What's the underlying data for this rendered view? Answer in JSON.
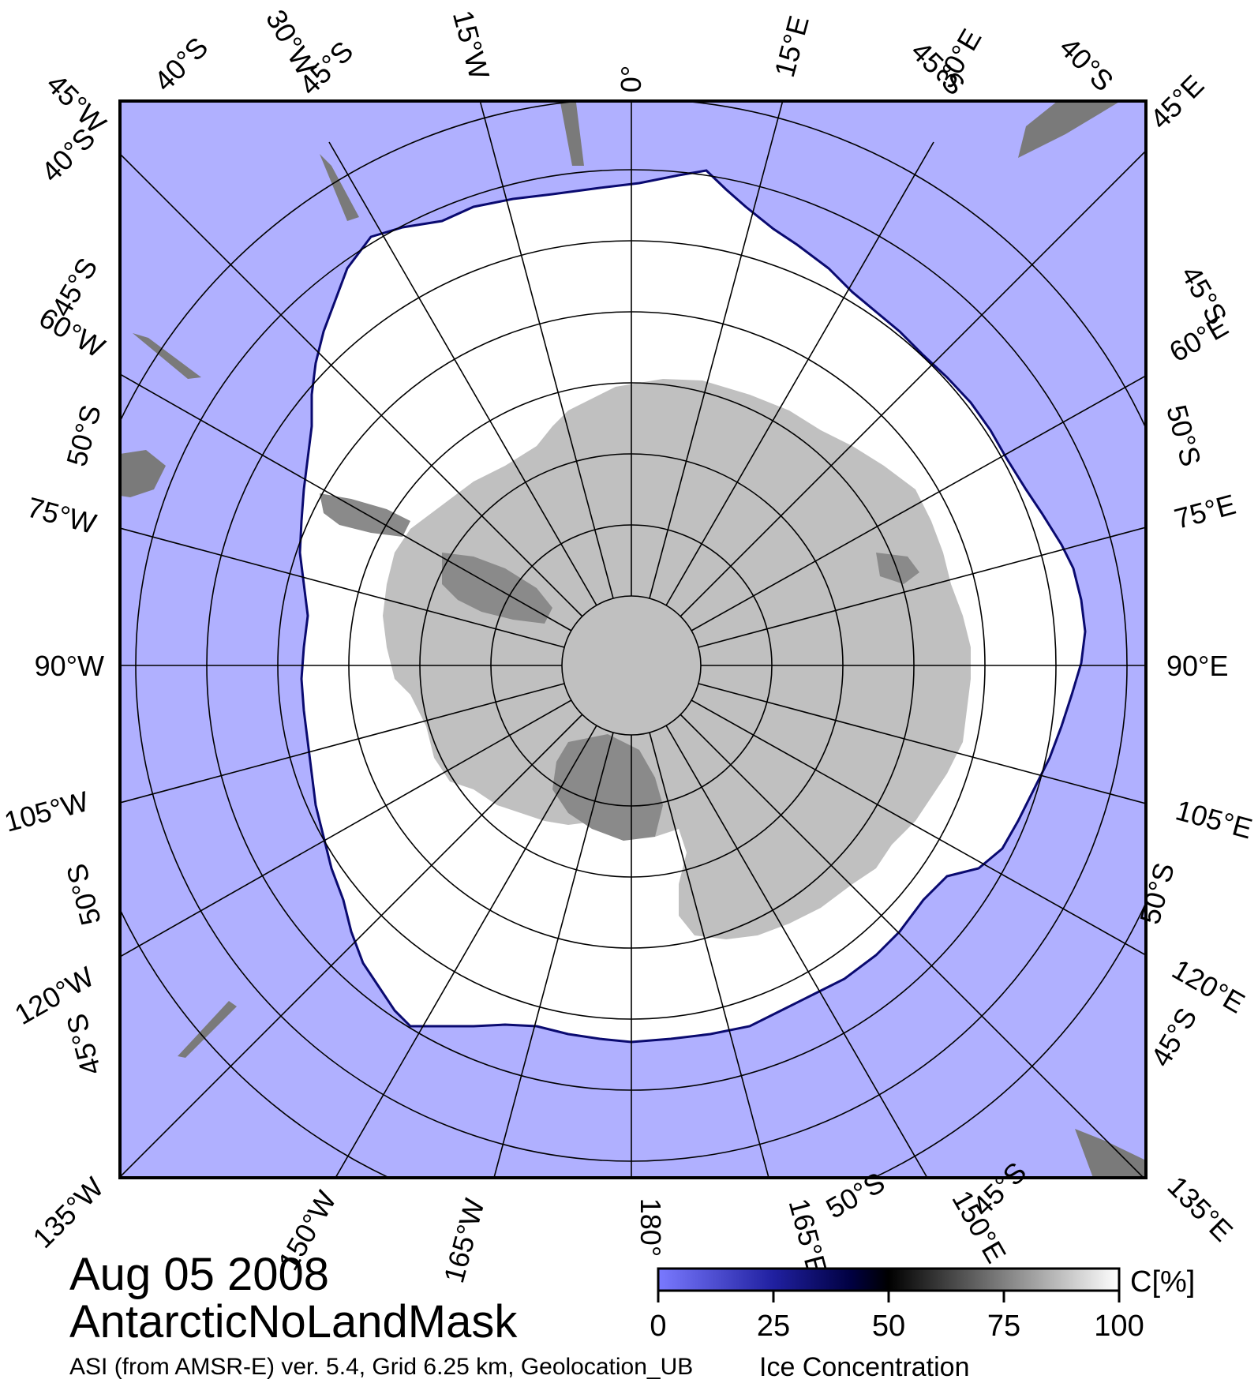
{
  "date": "Aug 05 2008",
  "product": "AntarcticNoLandMask",
  "source_note": "ASI (from AMSR-E) ver. 5.4,  Grid 6.25 km, Geolocation_UB",
  "legend_title": "Ice Concentration",
  "colorbar": {
    "unit": "C[%]",
    "ticks": [
      "0",
      "25",
      "50",
      "75",
      "100"
    ],
    "colors": {
      "open_water": "#b0b0ff",
      "low": "#7070ff",
      "mid_low": "#000060",
      "mid": "#000000",
      "high": "#ffffff"
    }
  },
  "map": {
    "projection": "south polar stereographic",
    "colors": {
      "ocean": "#b0b0ff",
      "sea_ice": "#ffffff",
      "land": "#c0c0c0",
      "ice_shelf": "#8a8a8a",
      "grid": "#000000"
    },
    "longitude_labels": [
      "0°",
      "15°E",
      "30°E",
      "45°E",
      "60°E",
      "75°E",
      "90°E",
      "105°E",
      "120°E",
      "135°E",
      "150°E",
      "165°E",
      "180°",
      "165°W",
      "150°W",
      "135°W",
      "120°W",
      "105°W",
      "90°W",
      "75°W",
      "60°W",
      "45°W",
      "30°W",
      "15°W"
    ],
    "latitude_labels": [
      "40°S",
      "45°S",
      "45°S",
      "40°S",
      "40°S",
      "45°S",
      "50°S",
      "50°S",
      "45°S",
      "45°S",
      "50°S",
      "50°S",
      "45°S",
      "50°S",
      "45°S"
    ]
  }
}
